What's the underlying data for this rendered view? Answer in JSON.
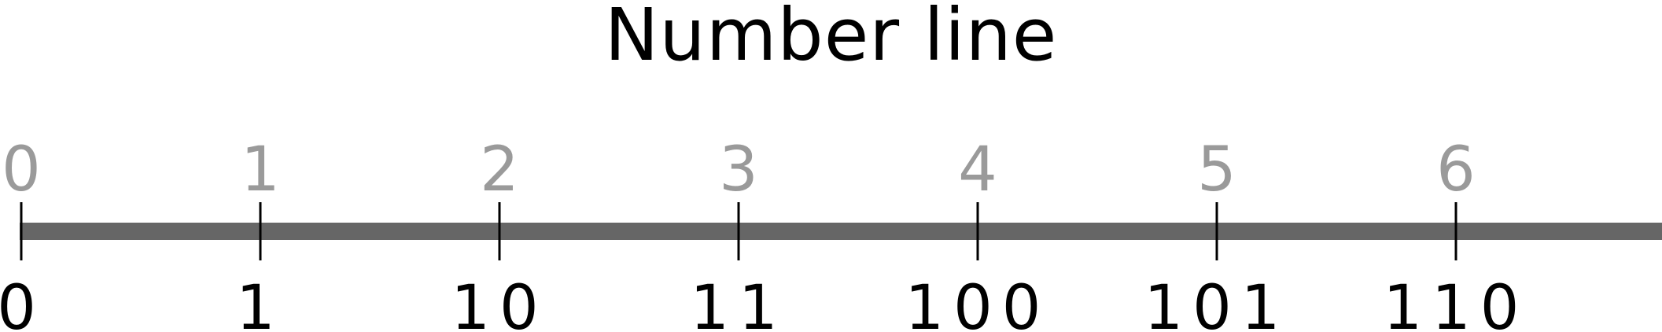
{
  "title": "Number line",
  "colors": {
    "axis": "#666666",
    "tick": "#000000",
    "decimal_label": "#9a9a9a",
    "binary_label": "#000000"
  },
  "ticks": [
    {
      "value": 0,
      "decimal": "0",
      "binary": "0"
    },
    {
      "value": 1,
      "decimal": "1",
      "binary": "1"
    },
    {
      "value": 2,
      "decimal": "2",
      "binary": "10"
    },
    {
      "value": 3,
      "decimal": "3",
      "binary": "11"
    },
    {
      "value": 4,
      "decimal": "4",
      "binary": "100"
    },
    {
      "value": 5,
      "decimal": "5",
      "binary": "101"
    },
    {
      "value": 6,
      "decimal": "6",
      "binary": "110"
    }
  ]
}
